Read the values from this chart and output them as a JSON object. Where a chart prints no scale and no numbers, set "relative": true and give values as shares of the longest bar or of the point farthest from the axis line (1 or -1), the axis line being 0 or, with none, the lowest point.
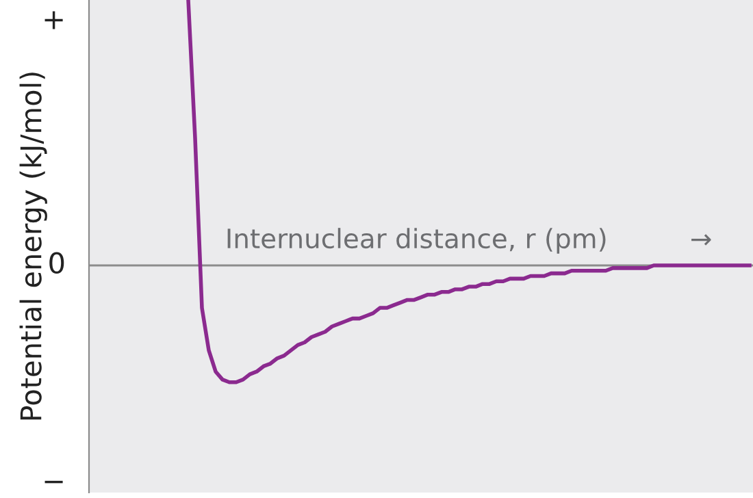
{
  "chart_data": {
    "type": "line",
    "relative": true,
    "ylabel": "Potential energy (kJ/mol)",
    "xlabel": "Internuclear distance, r (pm)",
    "annotations": [
      "+",
      "0",
      "−",
      "→"
    ],
    "ref_lines": [
      {
        "axis": "y",
        "value": 0,
        "color": "#8c8c8c"
      }
    ],
    "grid": false,
    "marker": "none",
    "line_style": "solid",
    "categories": [
      null,
      null,
      null,
      null,
      null,
      null,
      null,
      null,
      null,
      null,
      null,
      null,
      null,
      null,
      null,
      null,
      null,
      null,
      null,
      null,
      null,
      null,
      null,
      null,
      null,
      null,
      null,
      null,
      null,
      null,
      null,
      null,
      null,
      null,
      null,
      null,
      null,
      null,
      null,
      null,
      null,
      null,
      null,
      null,
      null,
      null,
      null,
      null,
      null,
      null,
      null,
      null,
      null,
      null,
      null,
      null,
      null,
      null,
      null,
      null,
      null,
      null,
      null,
      null,
      null,
      null,
      null,
      null,
      null,
      null,
      null,
      null,
      null,
      null,
      null,
      null,
      null,
      null,
      null,
      null,
      null,
      null,
      null,
      null,
      null,
      null,
      null,
      null,
      null,
      null,
      null,
      null,
      null,
      null,
      null,
      null,
      null
    ],
    "series": [
      {
        "color": "#8b2a8f",
        "values": [
          null,
          null,
          null,
          null,
          null,
          null,
          null,
          null,
          null,
          null,
          null,
          null,
          null,
          null,
          1,
          0.48,
          -0.16,
          -0.32,
          -0.4,
          -0.43,
          -0.44,
          -0.44,
          -0.43,
          -0.41,
          -0.4,
          -0.38,
          -0.37,
          -0.35,
          -0.34,
          -0.32,
          -0.3,
          -0.29,
          -0.27,
          -0.26,
          -0.25,
          -0.23,
          -0.22,
          -0.21,
          -0.2,
          -0.2,
          -0.19,
          -0.18,
          -0.16,
          -0.16,
          -0.15,
          -0.14,
          -0.13,
          -0.13,
          -0.12,
          -0.11,
          -0.11,
          -0.1,
          -0.1,
          -0.09,
          -0.09,
          -0.08,
          -0.08,
          -0.07,
          -0.07,
          -0.06,
          -0.06,
          -0.05,
          -0.05,
          -0.05,
          -0.04,
          -0.04,
          -0.04,
          -0.03,
          -0.03,
          -0.03,
          -0.02,
          -0.02,
          -0.02,
          -0.02,
          -0.02,
          -0.02,
          -0.01,
          -0.01,
          -0.01,
          -0.01,
          -0.01,
          -0.01,
          0,
          0,
          0,
          0,
          0,
          0,
          0,
          0,
          0,
          0,
          0,
          0,
          0,
          0,
          0
        ]
      }
    ]
  }
}
